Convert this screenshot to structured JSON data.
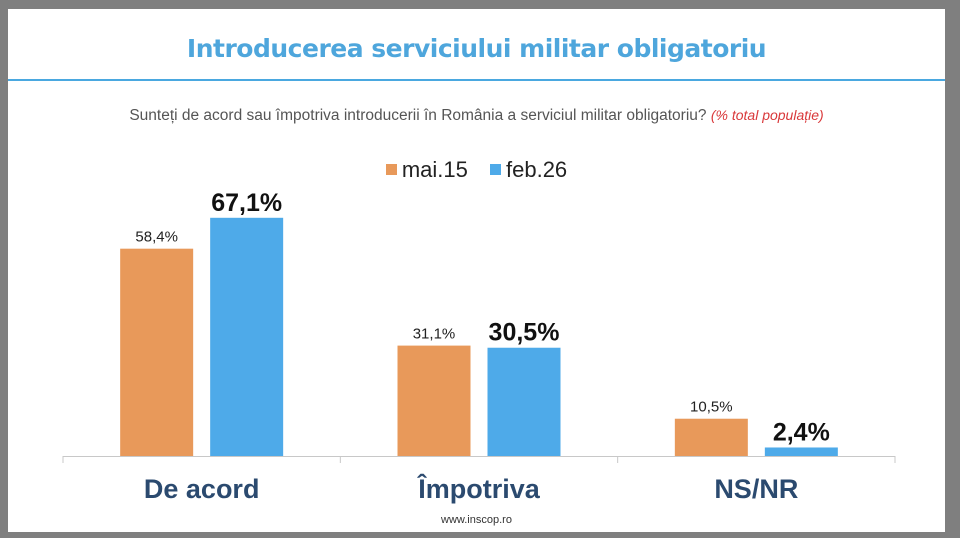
{
  "title": "Introducerea serviciului militar obligatoriu",
  "question": "Sunteți de acord sau împotriva introducerii în România a serviciul militar obligatoriu?",
  "question_note": "(% total populație)",
  "footer": "www.inscop.ro",
  "colors": {
    "series_1": "#e8995a",
    "series_2": "#4eaae9",
    "title": "#4ea6dc",
    "category_label": "#2b4a6f"
  },
  "chart_data": {
    "type": "bar",
    "title": "Introducerea serviciului militar obligatoriu",
    "categories": [
      "De acord",
      "Împotriva",
      "NS/NR"
    ],
    "series": [
      {
        "name": "mai.15",
        "values": [
          58.4,
          31.1,
          10.5
        ],
        "labels": [
          "58,4%",
          "31,1%",
          "10,5%"
        ]
      },
      {
        "name": "feb.26",
        "values": [
          67.1,
          30.5,
          2.4
        ],
        "labels": [
          "67,1%",
          "30,5%",
          "2,4%"
        ]
      }
    ],
    "legend": "top-center",
    "ylim": [
      0,
      67.1
    ],
    "grid": false,
    "xlabel": "",
    "ylabel": ""
  }
}
